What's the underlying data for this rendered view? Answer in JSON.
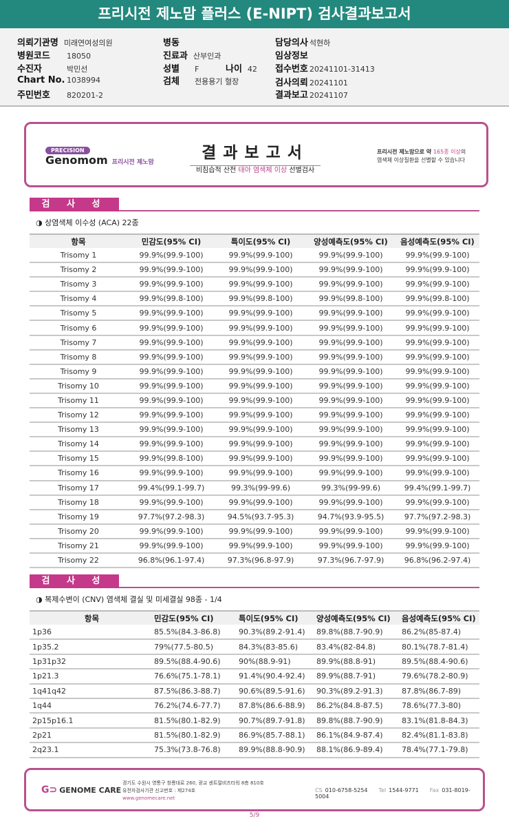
{
  "title": "프리시전 제노맘 플러스 (E-NIPT) 검사결과보고서",
  "info": {
    "institution": {
      "label": "의뢰기관명",
      "value": "미래연여성의원"
    },
    "hospital_code": {
      "label": "병원코드",
      "value": "18050"
    },
    "patient": {
      "label": "수진자",
      "value": "박민선"
    },
    "chart_no": {
      "label": "Chart No.",
      "value": "1038994"
    },
    "resident_no": {
      "label": "주민번호",
      "value": "820201-2"
    },
    "ward": {
      "label": "병동",
      "value": ""
    },
    "department": {
      "label": "진료과",
      "value": "산부인과"
    },
    "sex": {
      "label": "성별",
      "value": "F"
    },
    "age": {
      "label": "나이",
      "value": "42"
    },
    "specimen": {
      "label": "검체",
      "value": "전용용기 혈장"
    },
    "doctor": {
      "label": "담당의사",
      "value": "석현하"
    },
    "clinical_info": {
      "label": "임상정보",
      "value": ""
    },
    "receipt_no": {
      "label": "접수번호",
      "value": "20241101-31413"
    },
    "request_date": {
      "label": "검사의뢰",
      "value": "20241101"
    },
    "report_date": {
      "label": "결과보고",
      "value": "20241107"
    }
  },
  "banner": {
    "precision": "PRECISION",
    "brand": "Genomom",
    "brand_kr": "프리시전 제노맘",
    "report_title": "결과보고서",
    "subtitle_pre": "비침습적 산전 ",
    "subtitle_hl": "태아 염색체 이상",
    "subtitle_post": " 선별검사",
    "right_line1_a": "프리시전 제노맘으로 약 ",
    "right_line1_hl": "165종 이상",
    "right_line1_b": "의",
    "right_line2": "염색체 이상질환을 선별할 수 있습니다"
  },
  "section_label": "검 사 성 능",
  "aca": {
    "subtitle": "◑ 상염색체 이수성 (ACA) 22종",
    "headers": [
      "항목",
      "민감도(95% CI)",
      "특이도(95% CI)",
      "양성예측도(95% CI)",
      "음성예측도(95% CI)"
    ],
    "rows": [
      [
        "Trisomy 1",
        "99.9%(99.9-100)",
        "99.9%(99.9-100)",
        "99.9%(99.9-100)",
        "99.9%(99.9-100)"
      ],
      [
        "Trisomy 2",
        "99.9%(99.9-100)",
        "99.9%(99.9-100)",
        "99.9%(99.9-100)",
        "99.9%(99.9-100)"
      ],
      [
        "Trisomy 3",
        "99.9%(99.9-100)",
        "99.9%(99.9-100)",
        "99.9%(99.9-100)",
        "99.9%(99.9-100)"
      ],
      [
        "Trisomy 4",
        "99.9%(99.8-100)",
        "99.9%(99.8-100)",
        "99.9%(99.8-100)",
        "99.9%(99.8-100)"
      ],
      [
        "Trisomy 5",
        "99.9%(99.9-100)",
        "99.9%(99.9-100)",
        "99.9%(99.9-100)",
        "99.9%(99.9-100)"
      ],
      [
        "Trisomy 6",
        "99.9%(99.9-100)",
        "99.9%(99.9-100)",
        "99.9%(99.9-100)",
        "99.9%(99.9-100)"
      ],
      [
        "Trisomy 7",
        "99.9%(99.9-100)",
        "99.9%(99.9-100)",
        "99.9%(99.9-100)",
        "99.9%(99.9-100)"
      ],
      [
        "Trisomy 8",
        "99.9%(99.9-100)",
        "99.9%(99.9-100)",
        "99.9%(99.9-100)",
        "99.9%(99.9-100)"
      ],
      [
        "Trisomy 9",
        "99.9%(99.9-100)",
        "99.9%(99.9-100)",
        "99.9%(99.9-100)",
        "99.9%(99.9-100)"
      ],
      [
        "Trisomy 10",
        "99.9%(99.9-100)",
        "99.9%(99.9-100)",
        "99.9%(99.9-100)",
        "99.9%(99.9-100)"
      ],
      [
        "Trisomy 11",
        "99.9%(99.9-100)",
        "99.9%(99.9-100)",
        "99.9%(99.9-100)",
        "99.9%(99.9-100)"
      ],
      [
        "Trisomy 12",
        "99.9%(99.9-100)",
        "99.9%(99.9-100)",
        "99.9%(99.9-100)",
        "99.9%(99.9-100)"
      ],
      [
        "Trisomy 13",
        "99.9%(99.9-100)",
        "99.9%(99.9-100)",
        "99.9%(99.9-100)",
        "99.9%(99.9-100)"
      ],
      [
        "Trisomy 14",
        "99.9%(99.9-100)",
        "99.9%(99.9-100)",
        "99.9%(99.9-100)",
        "99.9%(99.9-100)"
      ],
      [
        "Trisomy 15",
        "99.9%(99.8-100)",
        "99.9%(99.9-100)",
        "99.9%(99.9-100)",
        "99.9%(99.9-100)"
      ],
      [
        "Trisomy 16",
        "99.9%(99.9-100)",
        "99.9%(99.9-100)",
        "99.9%(99.9-100)",
        "99.9%(99.9-100)"
      ],
      [
        "Trisomy 17",
        "99.4%(99.1-99.7)",
        "99.3%(99-99.6)",
        "99.3%(99-99.6)",
        "99.4%(99.1-99.7)"
      ],
      [
        "Trisomy 18",
        "99.9%(99.9-100)",
        "99.9%(99.9-100)",
        "99.9%(99.9-100)",
        "99.9%(99.9-100)"
      ],
      [
        "Trisomy 19",
        "97.7%(97.2-98.3)",
        "94.5%(93.7-95.3)",
        "94.7%(93.9-95.5)",
        "97.7%(97.2-98.3)"
      ],
      [
        "Trisomy 20",
        "99.9%(99.9-100)",
        "99.9%(99.9-100)",
        "99.9%(99.9-100)",
        "99.9%(99.9-100)"
      ],
      [
        "Trisomy 21",
        "99.9%(99.9-100)",
        "99.9%(99.9-100)",
        "99.9%(99.9-100)",
        "99.9%(99.9-100)"
      ],
      [
        "Trisomy 22",
        "96.8%(96.1-97.4)",
        "97.3%(96.8-97.9)",
        "97.3%(96.7-97.9)",
        "96.8%(96.2-97.4)"
      ]
    ]
  },
  "cnv": {
    "subtitle": "◑ 복제수변이 (CNV) 염색체 결실 및 미세결실 98종 - 1/4",
    "headers": [
      "항목",
      "민감도(95% CI)",
      "특이도(95% CI)",
      "양성예측도(95% CI)",
      "음성예측도(95% CI)"
    ],
    "rows": [
      [
        "1p36",
        "85.5%(84.3-86.8)",
        "90.3%(89.2-91.4)",
        "89.8%(88.7-90.9)",
        "86.2%(85-87.4)"
      ],
      [
        "1p35.2",
        "79%(77.5-80.5)",
        "84.3%(83-85.6)",
        "83.4%(82-84.8)",
        "80.1%(78.7-81.4)"
      ],
      [
        "1p31p32",
        "89.5%(88.4-90.6)",
        "90%(88.9-91)",
        "89.9%(88.8-91)",
        "89.5%(88.4-90.6)"
      ],
      [
        "1p21.3",
        "76.6%(75.1-78.1)",
        "91.4%(90.4-92.4)",
        "89.9%(88.7-91)",
        "79.6%(78.2-80.9)"
      ],
      [
        "1q41q42",
        "87.5%(86.3-88.7)",
        "90.6%(89.5-91.6)",
        "90.3%(89.2-91.3)",
        "87.8%(86.7-89)"
      ],
      [
        "1q44",
        "76.2%(74.6-77.7)",
        "87.8%(86.6-88.9)",
        "86.2%(84.8-87.5)",
        "78.6%(77.3-80)"
      ],
      [
        "2p15p16.1",
        "81.5%(80.1-82.9)",
        "90.7%(89.7-91.8)",
        "89.8%(88.7-90.9)",
        "83.1%(81.8-84.3)"
      ],
      [
        "2p21",
        "81.5%(80.1-82.9)",
        "86.9%(85.7-88.1)",
        "86.1%(84.9-87.4)",
        "82.4%(81.1-83.8)"
      ],
      [
        "2q23.1",
        "75.3%(73.8-76.8)",
        "89.9%(88.8-90.9)",
        "88.1%(86.9-89.4)",
        "78.4%(77.1-79.8)"
      ]
    ]
  },
  "footer": {
    "logo": "GENOME CARE",
    "address": "경기도 수원시 영통구 창룡대로 260, 광교 센트럴비즈타워 8층 810호",
    "license": "유전자검사기관 신고번호 : 제274호",
    "url": "www.genomecare.net",
    "cs_label": "CS",
    "cs": "010-6758-5254",
    "tel_label": "Tel",
    "tel": "1544-9771",
    "fax_label": "Fax",
    "fax": "031-8019-5004"
  },
  "page_number": "5/9",
  "colors": {
    "title_bar": "#23887d",
    "accent": "#c4398a"
  }
}
